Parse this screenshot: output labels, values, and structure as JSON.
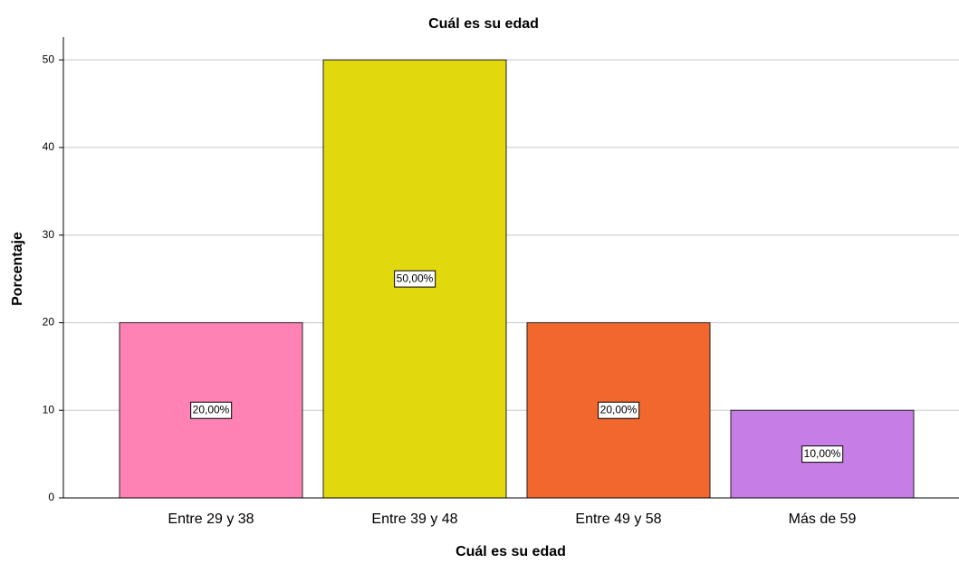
{
  "chart_data": {
    "type": "bar",
    "title": "Cuál es su edad",
    "x_label": "Cuál es su edad",
    "y_label": "Porcentaje",
    "categories": [
      "Entre 29 y 38",
      "Entre 39 y 48",
      "Entre 49 y 58",
      "Más de 59"
    ],
    "values": [
      20,
      50,
      20,
      10
    ],
    "value_labels": [
      "20,00%",
      "50,00%",
      "20,00%",
      "10,00%"
    ],
    "colors": [
      "#ff82b4",
      "#e2d80e",
      "#f2672e",
      "#c67ee6"
    ],
    "ylim": [
      0,
      52.6
    ],
    "yticks": [
      0,
      10,
      20,
      30,
      40,
      50
    ],
    "grid": true
  }
}
